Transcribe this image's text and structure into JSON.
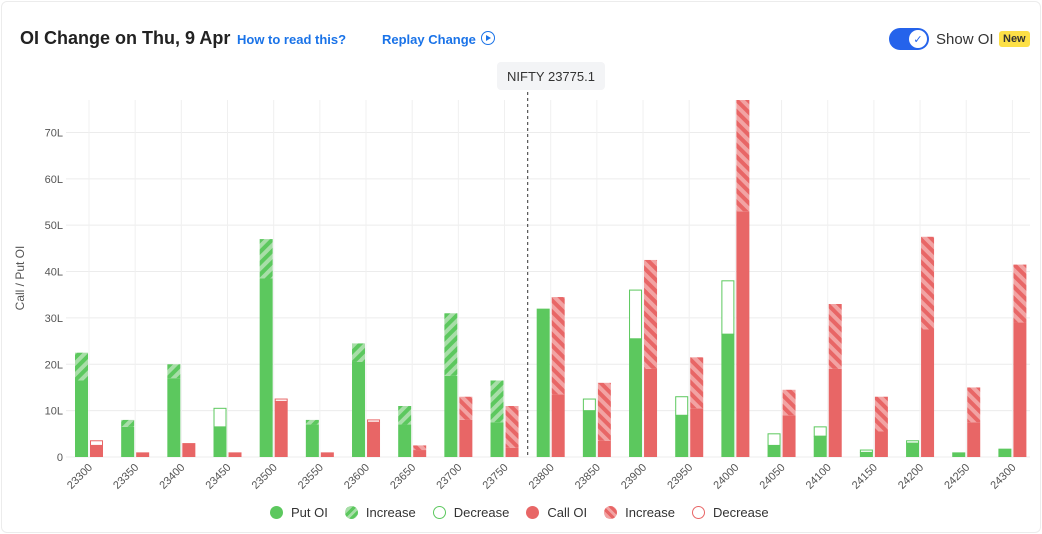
{
  "header": {
    "title": "OI Change on Thu, 9 Apr",
    "how_to_read": "How to read this?",
    "replay": "Replay Change",
    "show_oi_label": "Show OI",
    "new_badge": "New",
    "show_oi_on": true
  },
  "spot_label": "NIFTY 23775.1",
  "colors": {
    "put": "#5cc85e",
    "put_light": "#a8dea8",
    "call": "#e86666",
    "call_light": "#f2a3a3",
    "toggle": "#2563eb"
  },
  "chart_data": {
    "type": "bar",
    "ylabel": "Call / Put OI",
    "ylim": [
      0,
      77
    ],
    "yticks": [
      "0",
      "10L",
      "20L",
      "30L",
      "40L",
      "50L",
      "60L",
      "70L"
    ],
    "spot": 23775.1,
    "categories": [
      "23300",
      "23350",
      "23400",
      "23450",
      "23500",
      "23550",
      "23600",
      "23650",
      "23700",
      "23750",
      "23800",
      "23850",
      "23900",
      "23950",
      "24000",
      "24050",
      "24100",
      "24150",
      "24200",
      "24250",
      "24300"
    ],
    "put_oi": [
      16.5,
      6.5,
      17,
      6.5,
      38.5,
      7,
      20.5,
      7,
      17.5,
      7.5,
      32,
      10,
      25.5,
      9,
      26.5,
      2.5,
      4.5,
      1,
      3,
      1,
      1.8
    ],
    "put_increase": [
      6,
      1.5,
      3,
      0,
      8.5,
      1,
      4,
      4,
      13.5,
      9,
      0,
      0,
      0,
      0,
      0,
      0,
      0,
      0,
      0,
      0,
      0
    ],
    "put_decrease": [
      0,
      0,
      0,
      4,
      0,
      0,
      0,
      0,
      0,
      0,
      0,
      2.5,
      10.5,
      4,
      11.5,
      2.5,
      2,
      0.5,
      0.5,
      0,
      0
    ],
    "call_oi": [
      2.5,
      1,
      3,
      1,
      12,
      1,
      7.5,
      1.5,
      8,
      2,
      13.5,
      3.5,
      19,
      10.5,
      53,
      9,
      19,
      5.5,
      27.5,
      7.5,
      29
    ],
    "call_increase": [
      0,
      0,
      0,
      0,
      0,
      0,
      0,
      1,
      5,
      9,
      21,
      12.5,
      23.5,
      11,
      24,
      5.5,
      14,
      7.5,
      20,
      7.5,
      12.5
    ],
    "call_decrease": [
      1,
      0,
      0,
      0,
      0.5,
      0,
      0.5,
      0,
      0,
      0,
      0,
      0,
      0,
      0,
      0,
      0,
      0,
      0,
      0,
      0,
      0
    ]
  },
  "legend": [
    {
      "label": "Put OI",
      "kind": "put-solid"
    },
    {
      "label": "Increase",
      "kind": "put-increase"
    },
    {
      "label": "Decrease",
      "kind": "put-decrease"
    },
    {
      "label": "Call OI",
      "kind": "call-solid"
    },
    {
      "label": "Increase",
      "kind": "call-increase"
    },
    {
      "label": "Decrease",
      "kind": "call-decrease"
    }
  ]
}
